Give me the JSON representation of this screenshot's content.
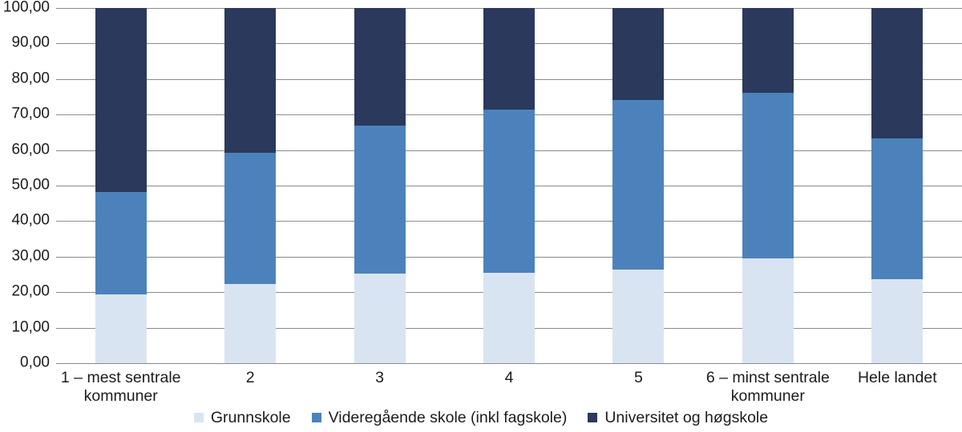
{
  "chart_data": {
    "type": "bar",
    "stacked": true,
    "percent_stacked": true,
    "categories": [
      "1 – mest sentrale kommuner",
      "2",
      "3",
      "4",
      "5",
      "6 – minst sentrale kommuner",
      "Hele landet"
    ],
    "series": [
      {
        "name": "Grunnskole",
        "color": "#d9e4f2",
        "values": [
          19.3,
          22.3,
          25.2,
          25.5,
          26.4,
          29.5,
          23.6
        ]
      },
      {
        "name": "Videregående skole (inkl fagskole)",
        "color": "#4c82bc",
        "values": [
          29.0,
          37.0,
          41.8,
          46.0,
          47.6,
          46.6,
          39.6
        ]
      },
      {
        "name": "Universitet og høgskole",
        "color": "#2a395c",
        "values": [
          51.7,
          40.7,
          33.0,
          28.5,
          26.0,
          23.9,
          36.8
        ]
      }
    ],
    "y_ticks": [
      "0,00",
      "10,00",
      "20,00",
      "30,00",
      "40,00",
      "50,00",
      "60,00",
      "70,00",
      "80,00",
      "90,00",
      "100,00"
    ],
    "ylim": [
      0,
      100
    ],
    "grid": true,
    "legend_position": "bottom"
  },
  "colors": {
    "gridline": "#8b8b8b",
    "text": "#1c1c1c",
    "background": "#ffffff"
  }
}
